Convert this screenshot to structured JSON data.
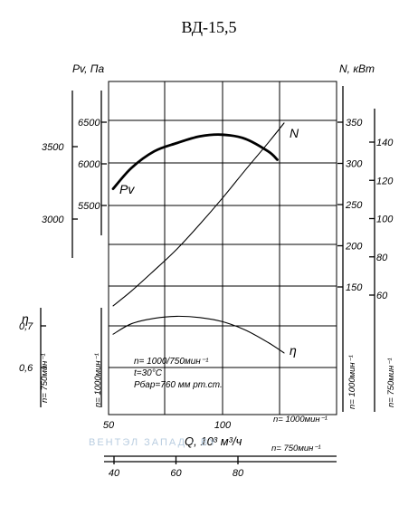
{
  "chart_data": {
    "type": "line",
    "title": "ВД-15,5",
    "left_pressure_label": "Pv, Па",
    "right_power_label": "N, кВт",
    "efficiency_label": "η",
    "x_axis": {
      "label": "Q, 10³ м³/ч",
      "n1000": {
        "label": "n= 1000мин⁻¹",
        "ticks": [
          "50",
          "100"
        ],
        "range": [
          50,
          125
        ]
      },
      "n750": {
        "label": "n= 750мин⁻¹",
        "ticks": [
          "40",
          "60",
          "80"
        ]
      }
    },
    "pressure_axes": {
      "n1000": {
        "ticks": [
          6500,
          6000,
          5500
        ]
      },
      "n750": {
        "ticks": [
          3500,
          3000
        ]
      }
    },
    "power_axes": {
      "n1000": {
        "ticks": [
          350,
          300,
          250,
          200,
          150
        ]
      },
      "n750": {
        "ticks": [
          140,
          120,
          100,
          80,
          60
        ]
      }
    },
    "efficiency_axis": {
      "ticks": [
        "0,7",
        "0,6"
      ]
    },
    "side_labels": {
      "left_outer": "n= 750мин⁻¹",
      "left_inner": "n= 1000мин⁻¹",
      "right_inner": "n= 1000мин⁻¹",
      "right_outer": "n= 750мин⁻¹"
    },
    "annotations": [
      "n= 1000/750мин⁻¹",
      "t=30°C",
      "Pбар=760 мм рт.ст."
    ],
    "series": [
      {
        "name": "Pv",
        "axis": "pressure_n1000",
        "points": [
          [
            52,
            5700
          ],
          [
            60,
            5950
          ],
          [
            70,
            6150
          ],
          [
            80,
            6250
          ],
          [
            90,
            6330
          ],
          [
            100,
            6350
          ],
          [
            110,
            6300
          ],
          [
            120,
            6150
          ],
          [
            124,
            6050
          ]
        ]
      },
      {
        "name": "N",
        "axis": "power_n1000",
        "points": [
          [
            52,
            127
          ],
          [
            60,
            145
          ],
          [
            70,
            170
          ],
          [
            80,
            196
          ],
          [
            90,
            226
          ],
          [
            100,
            258
          ],
          [
            110,
            292
          ],
          [
            120,
            325
          ],
          [
            127,
            349
          ]
        ]
      },
      {
        "name": "η",
        "axis": "efficiency",
        "points": [
          [
            52,
            0.68
          ],
          [
            60,
            0.705
          ],
          [
            70,
            0.718
          ],
          [
            80,
            0.723
          ],
          [
            90,
            0.72
          ],
          [
            100,
            0.71
          ],
          [
            110,
            0.69
          ],
          [
            120,
            0.66
          ],
          [
            127,
            0.635
          ]
        ]
      }
    ],
    "grid": true
  },
  "watermark": "ВЕНТЭЛ ЗАПАД · BY"
}
